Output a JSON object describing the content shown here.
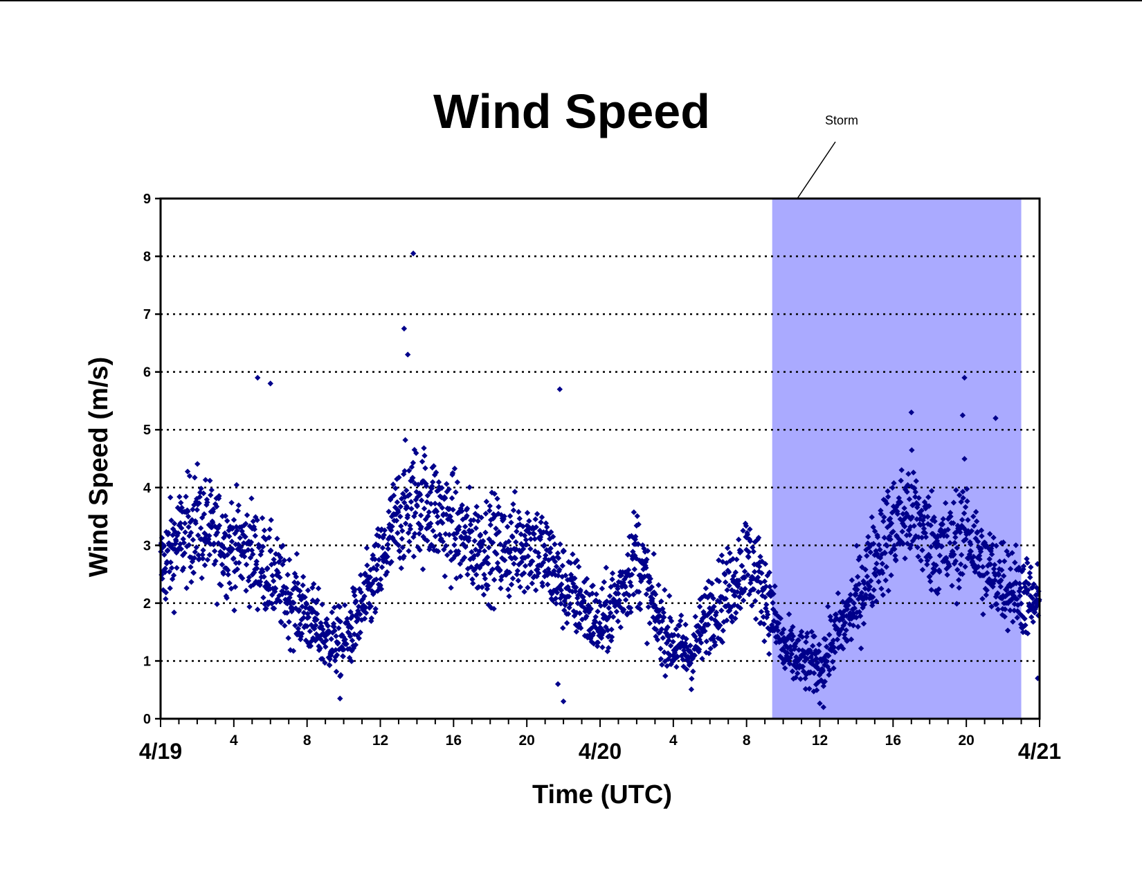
{
  "chart_data": {
    "type": "scatter",
    "title": "Wind Speed",
    "xlabel": "Time (UTC)",
    "ylabel": "Wind Speed (m/s)",
    "ylim": [
      0,
      9
    ],
    "xlim": [
      "4/19 00:00",
      "4/21 00:00"
    ],
    "x_units": "hours since 4/19 00:00 UTC",
    "y_ticks": [
      0,
      1,
      2,
      3,
      4,
      5,
      6,
      7,
      8,
      9
    ],
    "x_major_ticks": [
      {
        "hour": 0,
        "label": "4/19"
      },
      {
        "hour": 24,
        "label": "4/20"
      },
      {
        "hour": 48,
        "label": "4/21"
      }
    ],
    "x_minor_ticks": [
      {
        "hour": 4,
        "label": "4"
      },
      {
        "hour": 8,
        "label": "8"
      },
      {
        "hour": 12,
        "label": "12"
      },
      {
        "hour": 16,
        "label": "16"
      },
      {
        "hour": 20,
        "label": "20"
      },
      {
        "hour": 28,
        "label": "4"
      },
      {
        "hour": 32,
        "label": "8"
      },
      {
        "hour": 36,
        "label": "12"
      },
      {
        "hour": 40,
        "label": "16"
      },
      {
        "hour": 44,
        "label": "20"
      }
    ],
    "grid": "horizontal dotted",
    "marker": "diamond",
    "marker_color": "#00008B",
    "shaded_region": {
      "label": "Storm",
      "x_start_hour": 33.4,
      "x_end_hour": 47.0,
      "color": "#AAAAFF"
    },
    "series": [
      {
        "name": "",
        "trend_points": [
          [
            0,
            2.6
          ],
          [
            1,
            3.1
          ],
          [
            2,
            3.4
          ],
          [
            3,
            3.1
          ],
          [
            4,
            3.0
          ],
          [
            5,
            2.9
          ],
          [
            6,
            2.5
          ],
          [
            7,
            2.1
          ],
          [
            8,
            1.8
          ],
          [
            9,
            1.4
          ],
          [
            10,
            1.3
          ],
          [
            11,
            1.9
          ],
          [
            12,
            2.6
          ],
          [
            13,
            3.5
          ],
          [
            14,
            3.8
          ],
          [
            15,
            3.6
          ],
          [
            16,
            3.3
          ],
          [
            17,
            3.0
          ],
          [
            18,
            3.0
          ],
          [
            19,
            2.9
          ],
          [
            20,
            3.1
          ],
          [
            21,
            2.8
          ],
          [
            22,
            2.3
          ],
          [
            23,
            2.0
          ],
          [
            24,
            1.6
          ],
          [
            25,
            2.1
          ],
          [
            26,
            2.9
          ],
          [
            27,
            1.8
          ],
          [
            28,
            1.3
          ],
          [
            29,
            1.1
          ],
          [
            30,
            1.9
          ],
          [
            31,
            2.2
          ],
          [
            32,
            2.8
          ],
          [
            33,
            2.2
          ],
          [
            34,
            1.2
          ],
          [
            35,
            1.0
          ],
          [
            36,
            0.9
          ],
          [
            37,
            1.5
          ],
          [
            38,
            2.0
          ],
          [
            39,
            2.8
          ],
          [
            40,
            3.3
          ],
          [
            41,
            3.6
          ],
          [
            42,
            3.1
          ],
          [
            43,
            2.9
          ],
          [
            44,
            3.3
          ],
          [
            45,
            2.6
          ],
          [
            46,
            2.4
          ],
          [
            47,
            2.2
          ],
          [
            48,
            1.9
          ]
        ],
        "notable_points": [
          [
            13.8,
            8.05
          ],
          [
            13.3,
            6.75
          ],
          [
            13.5,
            6.3
          ],
          [
            5.3,
            5.9
          ],
          [
            6.0,
            5.8
          ],
          [
            21.8,
            5.7
          ],
          [
            43.9,
            5.9
          ],
          [
            41.0,
            5.3
          ],
          [
            43.8,
            5.25
          ],
          [
            45.6,
            5.2
          ],
          [
            22.0,
            0.3
          ],
          [
            21.7,
            0.6
          ],
          [
            9.8,
            0.35
          ],
          [
            36.2,
            0.2
          ],
          [
            47.9,
            0.7
          ]
        ]
      }
    ]
  }
}
